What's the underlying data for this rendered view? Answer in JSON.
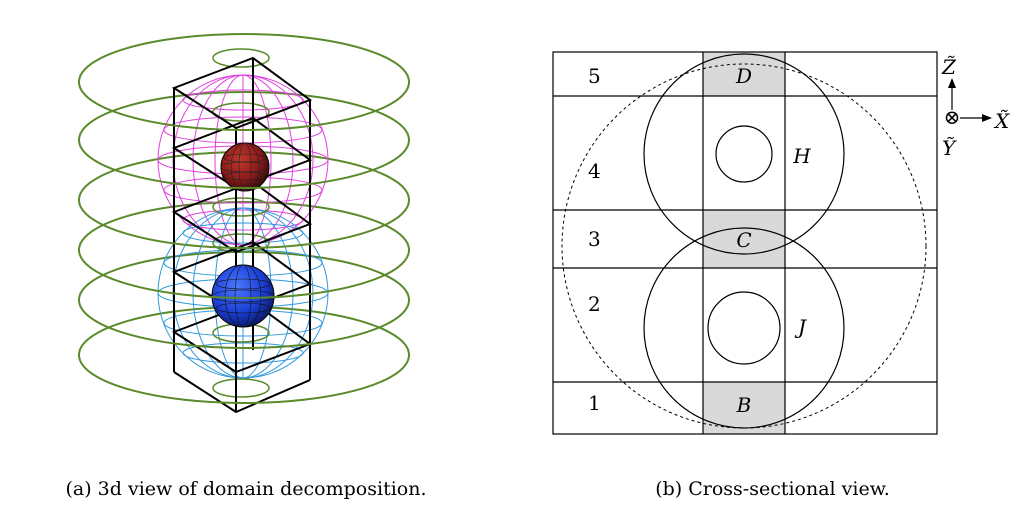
{
  "captions": {
    "a": "(a) 3d view of domain decomposition.",
    "b": "(b) Cross-sectional view."
  },
  "cross_section": {
    "row_labels": [
      "5",
      "4",
      "3",
      "2",
      "1"
    ],
    "region_labels": {
      "D": "D",
      "C": "C",
      "B": "B",
      "H": "H",
      "J": "J"
    },
    "axes": {
      "z": "Z̃",
      "x": "X̃",
      "y": "Ỹ",
      "into_page_symbol": "⊗"
    }
  },
  "colors": {
    "rings": "#5a8a2a",
    "upper_wire": "#e040e0",
    "lower_wire": "#3399dd",
    "upper_core": "#8b1a1a",
    "lower_core": "#1a3fd6",
    "shade": "#d9d9d9"
  }
}
